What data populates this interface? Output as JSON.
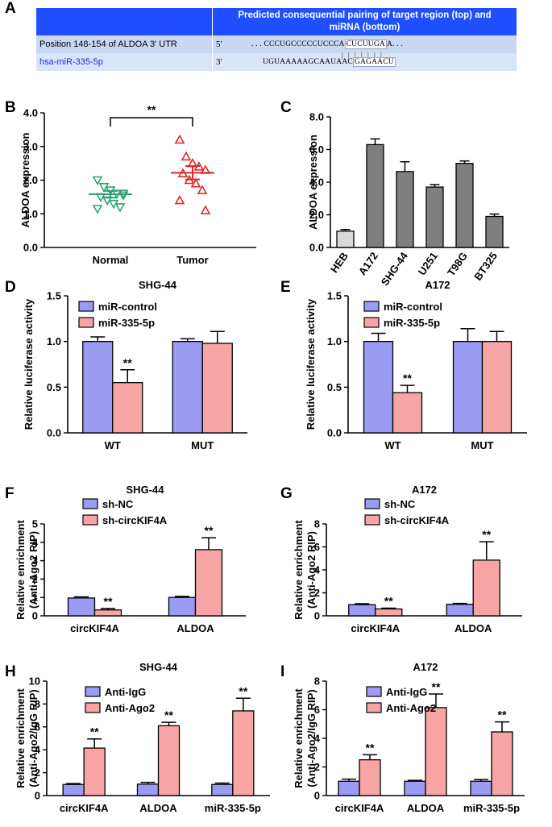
{
  "panel_letters": [
    "A",
    "B",
    "C",
    "D",
    "E",
    "F",
    "G",
    "H",
    "I"
  ],
  "sequence_table": {
    "header": "Predicted consequential pairing of target region (top) and miRNA (bottom)",
    "header_line1": "Predicted consequential pairing of target region (top) and",
    "header_line2": "miRNA (bottom)",
    "row1_label": "Position 148-154 of ALDOA 3' UTR",
    "row1_prime": "5'",
    "row1_seq_pre": ". . . CCCUGCCCCCUCCCA",
    "row1_seq_seed": "CUCUUGA",
    "row1_seq_post": "A. . .",
    "pair_marks": "|||||||",
    "row2_label": "hsa-miR-335-5p",
    "row2_prime": "3'",
    "row2_seq_pre": "UGUAAAAAGCAAUAAC",
    "row2_seq_seed": "GAGAACU"
  },
  "chart_data": [
    {
      "panel": "B",
      "type": "scatter",
      "title": "",
      "xlabel": "",
      "ylabel": "ALDOA expression",
      "ylim": [
        0.0,
        4.0
      ],
      "yticks": [
        "0.0",
        "1.0",
        "2.0",
        "3.0",
        "4.0"
      ],
      "categories": [
        "Normal",
        "Tumor"
      ],
      "series": [
        {
          "name": "Normal",
          "color": "#2ea36f",
          "marker": "triangle-down",
          "values": [
            2.0,
            1.8,
            1.7,
            1.6,
            1.55,
            1.5,
            1.4,
            1.3,
            1.2,
            1.15,
            1.6
          ],
          "mean": 1.58,
          "sem": 0.1
        },
        {
          "name": "Tumor",
          "color": "#e2252b",
          "marker": "triangle-up",
          "values": [
            3.2,
            2.7,
            2.5,
            2.4,
            2.3,
            2.2,
            2.0,
            1.9,
            1.7,
            1.4,
            1.1
          ],
          "mean": 2.22,
          "sem": 0.2
        }
      ],
      "significance": "**"
    },
    {
      "panel": "C",
      "type": "bar",
      "title": "",
      "xlabel": "",
      "ylabel": "ALDOA expression",
      "ylim": [
        0.0,
        8.0
      ],
      "yticks": [
        "0.0",
        "2.0",
        "4.0",
        "6.0",
        "8.0"
      ],
      "categories": [
        "HEB",
        "A172",
        "SHG-44",
        "U251",
        "T98G",
        "BT325"
      ],
      "values": [
        1.0,
        6.3,
        4.65,
        3.7,
        5.15,
        1.9
      ],
      "errors": [
        0.1,
        0.35,
        0.6,
        0.15,
        0.15,
        0.15
      ],
      "colors": [
        "#d9d9d9",
        "#7f7f7f",
        "#7f7f7f",
        "#7f7f7f",
        "#7f7f7f",
        "#7f7f7f"
      ]
    },
    {
      "panel": "D",
      "type": "bar",
      "title": "SHG-44",
      "xlabel": "",
      "ylabel": "Relative luciferase activity",
      "ylim": [
        0.0,
        1.5
      ],
      "yticks": [
        "0.0",
        "0.5",
        "1.0",
        "1.5"
      ],
      "categories": [
        "WT",
        "MUT"
      ],
      "series": [
        {
          "name": "miR-control",
          "color": "#9b9bf3",
          "values": [
            1.0,
            1.0
          ],
          "errors": [
            0.05,
            0.03
          ]
        },
        {
          "name": "miR-335-5p",
          "color": "#f7a4a4",
          "values": [
            0.55,
            0.98
          ],
          "errors": [
            0.14,
            0.13
          ]
        }
      ],
      "annotations": [
        {
          "category": "WT",
          "series": 1,
          "text": "**"
        }
      ]
    },
    {
      "panel": "E",
      "type": "bar",
      "title": "A172",
      "xlabel": "",
      "ylabel": "Relative luciferase activity",
      "ylim": [
        0.0,
        1.5
      ],
      "yticks": [
        "0.0",
        "0.5",
        "1.0",
        "1.5"
      ],
      "categories": [
        "WT",
        "MUT"
      ],
      "series": [
        {
          "name": "miR-control",
          "color": "#9b9bf3",
          "values": [
            1.0,
            1.0
          ],
          "errors": [
            0.09,
            0.14
          ]
        },
        {
          "name": "miR-335-5p",
          "color": "#f7a4a4",
          "values": [
            0.44,
            1.0
          ],
          "errors": [
            0.08,
            0.11
          ]
        }
      ],
      "annotations": [
        {
          "category": "WT",
          "series": 1,
          "text": "**"
        }
      ]
    },
    {
      "panel": "F",
      "type": "bar",
      "title": "SHG-44",
      "xlabel": "",
      "ylabel": "Relative enrichment",
      "ylabel2": "(Anti-Ago2 RIP)",
      "ylim": [
        0,
        5
      ],
      "yticks": [
        "0",
        "1",
        "2",
        "3",
        "4",
        "5"
      ],
      "categories": [
        "circKIF4A",
        "ALDOA"
      ],
      "series": [
        {
          "name": "sh-NC",
          "color": "#9b9bf3",
          "values": [
            0.97,
            1.0
          ],
          "errors": [
            0.06,
            0.06
          ]
        },
        {
          "name": "sh-circKIF4A",
          "color": "#f7a4a4",
          "values": [
            0.32,
            3.6
          ],
          "errors": [
            0.08,
            0.65
          ]
        }
      ],
      "annotations": [
        {
          "category": "circKIF4A",
          "series": 1,
          "text": "**"
        },
        {
          "category": "ALDOA",
          "series": 1,
          "text": "**"
        }
      ]
    },
    {
      "panel": "G",
      "type": "bar",
      "title": "A172",
      "xlabel": "",
      "ylabel": "Relative enrichment",
      "ylabel2": "(Anti-Ago2 RIP)",
      "ylim": [
        0,
        8
      ],
      "yticks": [
        "0",
        "2",
        "4",
        "6",
        "8"
      ],
      "categories": [
        "circKIF4A",
        "ALDOA"
      ],
      "series": [
        {
          "name": "sh-NC",
          "color": "#9b9bf3",
          "values": [
            0.97,
            1.0
          ],
          "errors": [
            0.08,
            0.08
          ]
        },
        {
          "name": "sh-circKIF4A",
          "color": "#f7a4a4",
          "values": [
            0.6,
            4.85
          ],
          "errors": [
            0.07,
            1.6
          ]
        }
      ],
      "annotations": [
        {
          "category": "circKIF4A",
          "series": 1,
          "text": "**"
        },
        {
          "category": "ALDOA",
          "series": 1,
          "text": "**"
        }
      ]
    },
    {
      "panel": "H",
      "type": "bar",
      "title": "SHG-44",
      "xlabel": "",
      "ylabel": "Relative enrichment",
      "ylabel2": "(Anti-Ago2/IgG RIP)",
      "ylim": [
        0,
        10
      ],
      "yticks": [
        "0",
        "2",
        "4",
        "6",
        "8",
        "10"
      ],
      "categories": [
        "circKIF4A",
        "ALDOA",
        "miR-335-5p"
      ],
      "series": [
        {
          "name": "Anti-IgG",
          "color": "#9b9bf3",
          "values": [
            0.97,
            1.0,
            0.97
          ],
          "errors": [
            0.08,
            0.15,
            0.12
          ]
        },
        {
          "name": "Anti-Ago2",
          "color": "#f7a4a4",
          "values": [
            4.15,
            6.1,
            7.4
          ],
          "errors": [
            0.8,
            0.3,
            1.1
          ]
        }
      ],
      "annotations": [
        {
          "category": "circKIF4A",
          "series": 1,
          "text": "**"
        },
        {
          "category": "ALDOA",
          "series": 1,
          "text": "**"
        },
        {
          "category": "miR-335-5p",
          "series": 1,
          "text": "**"
        }
      ]
    },
    {
      "panel": "I",
      "type": "bar",
      "title": "A172",
      "xlabel": "",
      "ylabel": "Relative enrichment",
      "ylabel2": "(Anti-Ago2/IgG RIP)",
      "ylim": [
        0,
        8
      ],
      "yticks": [
        "0",
        "2",
        "4",
        "6",
        "8"
      ],
      "categories": [
        "circKIF4A",
        "ALDOA",
        "miR-335-5p"
      ],
      "series": [
        {
          "name": "Anti-IgG",
          "color": "#9b9bf3",
          "values": [
            1.0,
            1.0,
            1.0
          ],
          "errors": [
            0.15,
            0.06,
            0.12
          ]
        },
        {
          "name": "Anti-Ago2",
          "color": "#f7a4a4",
          "values": [
            2.5,
            6.15,
            4.45
          ],
          "errors": [
            0.35,
            0.95,
            0.7
          ]
        }
      ],
      "annotations": [
        {
          "category": "circKIF4A",
          "series": 1,
          "text": "**"
        },
        {
          "category": "ALDOA",
          "series": 1,
          "text": "**"
        },
        {
          "category": "miR-335-5p",
          "series": 1,
          "text": "**"
        }
      ]
    }
  ]
}
